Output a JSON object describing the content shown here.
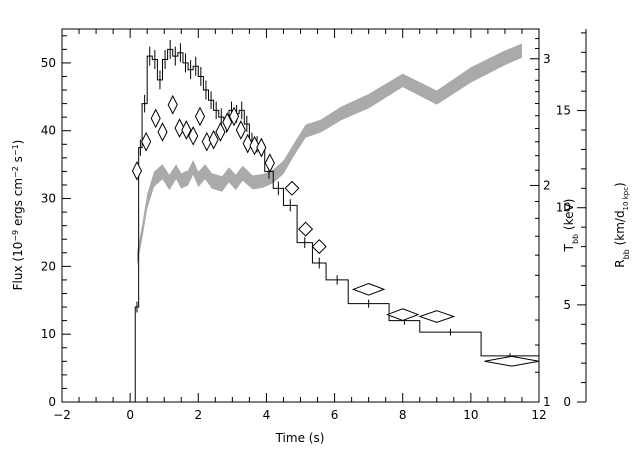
{
  "chart_data": {
    "type": "scatter",
    "x_axis": {
      "label": "Time (s)",
      "range": [
        -2,
        12
      ],
      "ticks": [
        -2,
        0,
        2,
        4,
        6,
        8,
        10,
        12
      ],
      "tick_labels": [
        "−2",
        "0",
        "2",
        "4",
        "6",
        "8",
        "10",
        "12"
      ]
    },
    "y_left": {
      "label_main": "Flux (10",
      "label_exp1": "−9",
      "label_mid": " ergs cm",
      "label_exp2": "−2",
      "label_sp": " s",
      "label_exp3": "−1",
      "label_end": ")",
      "range": [
        0,
        55
      ],
      "ticks": [
        0,
        10,
        20,
        30,
        40,
        50
      ],
      "tick_labels": [
        "0",
        "10",
        "20",
        "30",
        "40",
        "50"
      ]
    },
    "y_temp": {
      "label_main": "T",
      "label_sub": "bb",
      "label_end": " (keV)",
      "scale": "log",
      "range": [
        1,
        3.3
      ],
      "ticks": [
        1,
        2,
        3
      ],
      "tick_labels": [
        "1",
        "2",
        "3"
      ]
    },
    "y_radius": {
      "label_main": "R",
      "label_sub": "bb",
      "label_mid": " (km/d",
      "label_sub2": "10 kpc",
      "label_end": ")",
      "range": [
        0,
        19.2
      ],
      "ticks": [
        0,
        5,
        10,
        15
      ],
      "tick_labels": [
        "0",
        "5",
        "10",
        "15"
      ]
    },
    "series": [
      {
        "kind": "flux_histogram",
        "bins": [
          {
            "x0": 0.15,
            "x1": 0.25,
            "y": 14,
            "err": 0.8
          },
          {
            "x0": 0.25,
            "x1": 0.35,
            "y": 37.5,
            "err": 1.2
          },
          {
            "x0": 0.35,
            "x1": 0.5,
            "y": 44,
            "err": 1.3
          },
          {
            "x0": 0.5,
            "x1": 0.65,
            "y": 51,
            "err": 1.4
          },
          {
            "x0": 0.65,
            "x1": 0.8,
            "y": 50.5,
            "err": 1.4
          },
          {
            "x0": 0.8,
            "x1": 0.95,
            "y": 47.5,
            "err": 1.4
          },
          {
            "x0": 0.95,
            "x1": 1.1,
            "y": 50.5,
            "err": 1.4
          },
          {
            "x0": 1.1,
            "x1": 1.25,
            "y": 52,
            "err": 1.4
          },
          {
            "x0": 1.25,
            "x1": 1.4,
            "y": 51,
            "err": 1.4
          },
          {
            "x0": 1.4,
            "x1": 1.55,
            "y": 51.5,
            "err": 1.4
          },
          {
            "x0": 1.55,
            "x1": 1.7,
            "y": 50,
            "err": 1.4
          },
          {
            "x0": 1.7,
            "x1": 1.85,
            "y": 49,
            "err": 1.4
          },
          {
            "x0": 1.85,
            "x1": 2.0,
            "y": 49.5,
            "err": 1.4
          },
          {
            "x0": 2.0,
            "x1": 2.15,
            "y": 48,
            "err": 1.4
          },
          {
            "x0": 2.15,
            "x1": 2.3,
            "y": 46,
            "err": 1.4
          },
          {
            "x0": 2.3,
            "x1": 2.45,
            "y": 44.5,
            "err": 1.3
          },
          {
            "x0": 2.45,
            "x1": 2.6,
            "y": 43,
            "err": 1.3
          },
          {
            "x0": 2.6,
            "x1": 2.75,
            "y": 42,
            "err": 1.3
          },
          {
            "x0": 2.75,
            "x1": 2.9,
            "y": 41,
            "err": 1.3
          },
          {
            "x0": 2.9,
            "x1": 3.05,
            "y": 43,
            "err": 1.3
          },
          {
            "x0": 3.05,
            "x1": 3.2,
            "y": 42.5,
            "err": 1.3
          },
          {
            "x0": 3.2,
            "x1": 3.35,
            "y": 43,
            "err": 1.3
          },
          {
            "x0": 3.35,
            "x1": 3.5,
            "y": 41,
            "err": 1.2
          },
          {
            "x0": 3.5,
            "x1": 3.65,
            "y": 38.5,
            "err": 1.2
          },
          {
            "x0": 3.65,
            "x1": 3.8,
            "y": 38,
            "err": 1.2
          },
          {
            "x0": 3.8,
            "x1": 3.95,
            "y": 37.5,
            "err": 1.2
          },
          {
            "x0": 3.95,
            "x1": 4.2,
            "y": 34,
            "err": 1.1
          },
          {
            "x0": 4.2,
            "x1": 4.5,
            "y": 31.5,
            "err": 1.0
          },
          {
            "x0": 4.5,
            "x1": 4.9,
            "y": 29,
            "err": 0.9
          },
          {
            "x0": 4.9,
            "x1": 5.35,
            "y": 23.5,
            "err": 0.8
          },
          {
            "x0": 5.35,
            "x1": 5.75,
            "y": 20.5,
            "err": 0.8
          },
          {
            "x0": 5.75,
            "x1": 6.4,
            "y": 18,
            "err": 0.7
          },
          {
            "x0": 6.4,
            "x1": 7.6,
            "y": 14.5,
            "err": 0.6
          },
          {
            "x0": 7.6,
            "x1": 8.5,
            "y": 12,
            "err": 0.6
          },
          {
            "x0": 8.5,
            "x1": 10.3,
            "y": 10.3,
            "err": 0.5
          },
          {
            "x0": 10.3,
            "x1": 12.0,
            "y": 6.8,
            "err": 0.4
          }
        ]
      },
      {
        "kind": "radius_diamonds",
        "axis": "y_radius",
        "points": [
          {
            "x": 0.2,
            "xerr": 0.06,
            "y": 11.9,
            "yerr": 0.45
          },
          {
            "x": 0.47,
            "xerr": 0.07,
            "y": 13.4,
            "yerr": 0.45
          },
          {
            "x": 0.75,
            "xerr": 0.07,
            "y": 14.6,
            "yerr": 0.45
          },
          {
            "x": 0.95,
            "xerr": 0.07,
            "y": 13.9,
            "yerr": 0.45
          },
          {
            "x": 1.25,
            "xerr": 0.07,
            "y": 15.3,
            "yerr": 0.45
          },
          {
            "x": 1.45,
            "xerr": 0.07,
            "y": 14.1,
            "yerr": 0.45
          },
          {
            "x": 1.65,
            "xerr": 0.07,
            "y": 14.0,
            "yerr": 0.45
          },
          {
            "x": 1.85,
            "xerr": 0.07,
            "y": 13.7,
            "yerr": 0.45
          },
          {
            "x": 2.05,
            "xerr": 0.07,
            "y": 14.7,
            "yerr": 0.45
          },
          {
            "x": 2.25,
            "xerr": 0.07,
            "y": 13.4,
            "yerr": 0.45
          },
          {
            "x": 2.45,
            "xerr": 0.07,
            "y": 13.5,
            "yerr": 0.45
          },
          {
            "x": 2.65,
            "xerr": 0.07,
            "y": 13.9,
            "yerr": 0.45
          },
          {
            "x": 2.85,
            "xerr": 0.07,
            "y": 14.4,
            "yerr": 0.45
          },
          {
            "x": 3.05,
            "xerr": 0.07,
            "y": 14.7,
            "yerr": 0.45
          },
          {
            "x": 3.25,
            "xerr": 0.07,
            "y": 14.0,
            "yerr": 0.45
          },
          {
            "x": 3.45,
            "xerr": 0.07,
            "y": 13.3,
            "yerr": 0.45
          },
          {
            "x": 3.65,
            "xerr": 0.07,
            "y": 13.2,
            "yerr": 0.45
          },
          {
            "x": 3.85,
            "xerr": 0.07,
            "y": 13.1,
            "yerr": 0.45
          },
          {
            "x": 4.1,
            "xerr": 0.1,
            "y": 12.3,
            "yerr": 0.45
          },
          {
            "x": 4.75,
            "xerr": 0.2,
            "y": 11.0,
            "yerr": 0.35
          },
          {
            "x": 5.15,
            "xerr": 0.2,
            "y": 8.9,
            "yerr": 0.35
          },
          {
            "x": 5.55,
            "xerr": 0.2,
            "y": 8.0,
            "yerr": 0.35
          },
          {
            "x": 7.0,
            "xerr": 0.45,
            "y": 5.8,
            "yerr": 0.3
          },
          {
            "x": 8.0,
            "xerr": 0.45,
            "y": 4.5,
            "yerr": 0.3
          },
          {
            "x": 9.0,
            "xerr": 0.5,
            "y": 4.4,
            "yerr": 0.3
          },
          {
            "x": 11.2,
            "xerr": 0.8,
            "y": 2.1,
            "yerr": 0.25
          }
        ]
      },
      {
        "kind": "temperature_band",
        "axis": "y_temp",
        "color": "#aaaaaa",
        "points": [
          {
            "x": 0.2,
            "y": 1.58,
            "hw": 0.035
          },
          {
            "x": 0.35,
            "y": 1.72,
            "hw": 0.04
          },
          {
            "x": 0.5,
            "y": 1.9,
            "hw": 0.045
          },
          {
            "x": 0.7,
            "y": 2.04,
            "hw": 0.05
          },
          {
            "x": 0.95,
            "y": 2.09,
            "hw": 0.05
          },
          {
            "x": 1.15,
            "y": 2.02,
            "hw": 0.05
          },
          {
            "x": 1.35,
            "y": 2.09,
            "hw": 0.05
          },
          {
            "x": 1.5,
            "y": 2.03,
            "hw": 0.05
          },
          {
            "x": 1.7,
            "y": 2.05,
            "hw": 0.05
          },
          {
            "x": 1.85,
            "y": 2.12,
            "hw": 0.05
          },
          {
            "x": 2.0,
            "y": 2.04,
            "hw": 0.05
          },
          {
            "x": 2.2,
            "y": 2.09,
            "hw": 0.05
          },
          {
            "x": 2.4,
            "y": 2.03,
            "hw": 0.05
          },
          {
            "x": 2.7,
            "y": 2.01,
            "hw": 0.05
          },
          {
            "x": 2.9,
            "y": 2.07,
            "hw": 0.05
          },
          {
            "x": 3.1,
            "y": 2.02,
            "hw": 0.05
          },
          {
            "x": 3.3,
            "y": 2.08,
            "hw": 0.05
          },
          {
            "x": 3.6,
            "y": 2.02,
            "hw": 0.045
          },
          {
            "x": 3.9,
            "y": 2.03,
            "hw": 0.045
          },
          {
            "x": 4.2,
            "y": 2.06,
            "hw": 0.045
          },
          {
            "x": 4.5,
            "y": 2.12,
            "hw": 0.045
          },
          {
            "x": 4.8,
            "y": 2.24,
            "hw": 0.045
          },
          {
            "x": 5.15,
            "y": 2.38,
            "hw": 0.05
          },
          {
            "x": 5.6,
            "y": 2.42,
            "hw": 0.05
          },
          {
            "x": 6.2,
            "y": 2.52,
            "hw": 0.055
          },
          {
            "x": 7.0,
            "y": 2.62,
            "hw": 0.06
          },
          {
            "x": 8.0,
            "y": 2.8,
            "hw": 0.06
          },
          {
            "x": 9.0,
            "y": 2.65,
            "hw": 0.06
          },
          {
            "x": 10.0,
            "y": 2.85,
            "hw": 0.07
          },
          {
            "x": 11.0,
            "y": 3.01,
            "hw": 0.07
          },
          {
            "x": 11.5,
            "y": 3.08,
            "hw": 0.07
          }
        ]
      }
    ]
  }
}
